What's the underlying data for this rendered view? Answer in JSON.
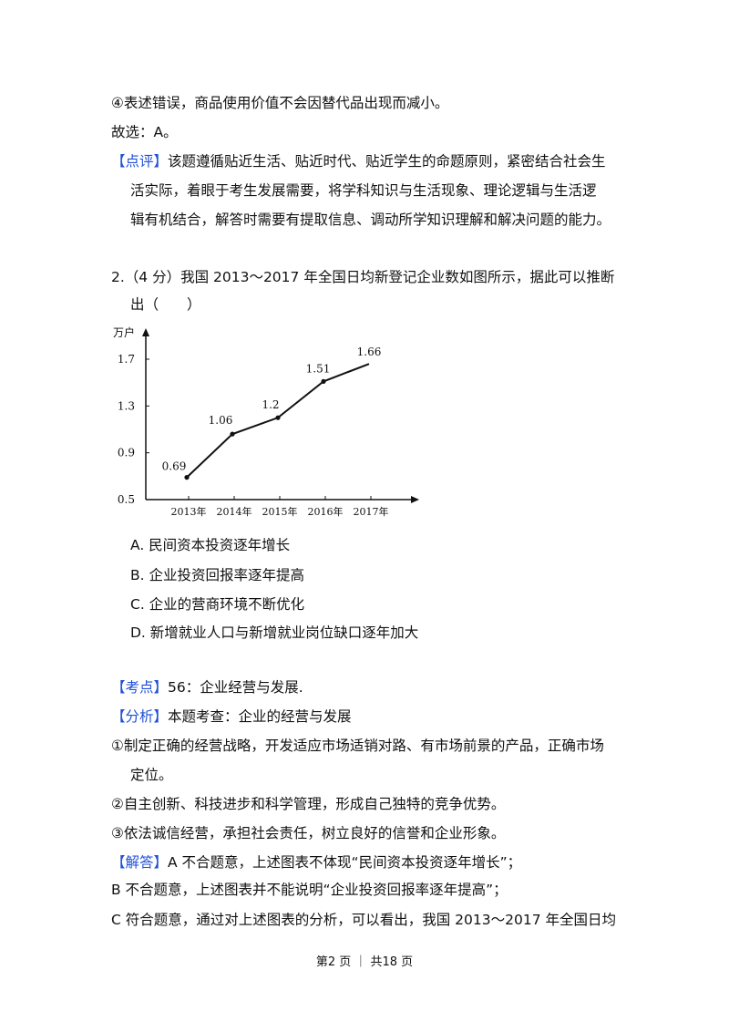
{
  "prev_answer": {
    "line4": "④表述错误，商品使用价值不会因替代品出现而减小。",
    "choice": "故选：A。",
    "comment_tag": "【点评】",
    "comment_lines": [
      "该题遵循贴近生活、贴近时代、贴近学生的命题原则，紧密结合社会生",
      "活实际，着眼于考生发展需要，将学科知识与生活现象、理论逻辑与生活逻",
      "辑有机结合，解答时需要有提取信息、调动所学知识理解和解决问题的能力。"
    ]
  },
  "question": {
    "stem_line1": "2.（4 分）我国 2013～2017 年全国日均新登记企业数如图所示，据此可以推断",
    "stem_line2": "出（　　）",
    "options": [
      "A.  民间资本投资逐年增长",
      "B.  企业投资回报率逐年提高",
      "C.  企业的营商环境不断优化",
      "D.  新增就业人口与新增就业岗位缺口逐年加大"
    ]
  },
  "chart_data": {
    "type": "line",
    "ylabel": "万户",
    "categories": [
      "2013年",
      "2014年",
      "2015年",
      "2016年",
      "2017年"
    ],
    "values": [
      0.69,
      1.06,
      1.2,
      1.51,
      1.66
    ],
    "data_labels": [
      "0.69",
      "1.06",
      "1.2",
      "1.51",
      "1.66"
    ],
    "y_ticks": [
      "0.5",
      "0.9",
      "1.3",
      "1.7"
    ],
    "y_tick_values": [
      0.5,
      0.9,
      1.3,
      1.7
    ],
    "ylim": [
      0.5,
      1.7
    ],
    "grid": false
  },
  "analysis": {
    "kaodian_tag": "【考点】",
    "kaodian_text": "56：企业经营与发展.",
    "fenxi_tag": "【分析】",
    "fenxi_text": "本题考查：企业的经营与发展",
    "points": [
      "①制定正确的经营战略，开发适应市场适销对路、有市场前景的产品，正确市场",
      "定位。",
      "②自主创新、科技进步和科学管理，形成自己独特的竞争优势。",
      "③依法诚信经营，承担社会责任，树立良好的信誉和企业形象。"
    ],
    "jieda_tag": "【解答】",
    "jieda_lines": [
      "A 不合题意，上述图表不体现“民间资本投资逐年增长”；",
      "B 不合题意，上述图表并不能说明“企业投资回报率逐年提高”；",
      "C 符合题意，通过对上述图表的分析，可以看出，我国 2013～2017 年全国日均"
    ]
  },
  "footer": {
    "text": "第2 页 ｜ 共18 页"
  }
}
